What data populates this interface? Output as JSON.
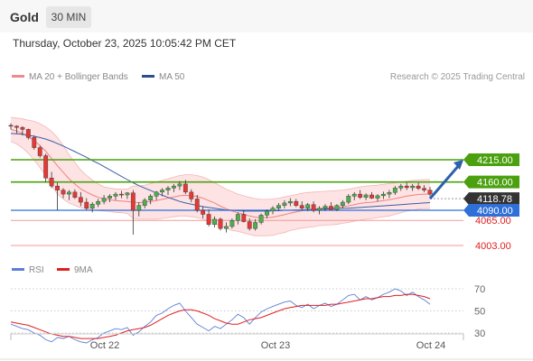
{
  "header": {
    "symbol": "Gold",
    "timeframe": "30 MIN"
  },
  "timestamp": "Thursday, October 23, 2025 10:05:42 PM CET",
  "legend": {
    "items": [
      {
        "label": "MA 20 + Bollinger Bands",
        "color": "#f08a8a"
      },
      {
        "label": "MA 50",
        "color": "#2b4f8e"
      }
    ],
    "credit": "Research © 2025 Trading Central"
  },
  "rsi_legend": {
    "items": [
      {
        "label": "RSI",
        "color": "#5b7fd6"
      },
      {
        "label": "9MA",
        "color": "#e02020"
      }
    ]
  },
  "colors": {
    "up": "#4caf50",
    "down": "#e53935",
    "resistance": "#4aa00e",
    "support": "#f29a9a",
    "ma20": "#f28080",
    "ma50": "#3b5ea8",
    "band_fill": "#fde3e3",
    "current": "#333333",
    "pivot": "#2f6fd8",
    "arrow": "#2d5fae"
  },
  "chart_data": [
    {
      "type": "candlestick",
      "title": "Gold 30 MIN",
      "x_tick_labels": [
        "Oct 22",
        "Oct 23",
        "Oct 24"
      ],
      "price_levels": [
        {
          "price": 4215.0,
          "label": "4215.00",
          "kind": "resistance"
        },
        {
          "price": 4160.0,
          "label": "4160.00",
          "kind": "resistance"
        },
        {
          "price": 4118.78,
          "label": "4118.78",
          "kind": "current"
        },
        {
          "price": 4090.0,
          "label": "4090.00",
          "kind": "pivot"
        },
        {
          "price": 4065.0,
          "label": "4065.00",
          "kind": "support"
        },
        {
          "price": 4003.0,
          "label": "4003.00",
          "kind": "support"
        }
      ],
      "ylim": [
        3960,
        4320
      ],
      "ohlc": [
        [
          4300,
          4305,
          4290,
          4298
        ],
        [
          4298,
          4300,
          4280,
          4295
        ],
        [
          4295,
          4298,
          4275,
          4290
        ],
        [
          4290,
          4292,
          4265,
          4270
        ],
        [
          4270,
          4275,
          4240,
          4245
        ],
        [
          4245,
          4250,
          4220,
          4225
        ],
        [
          4225,
          4230,
          4160,
          4170
        ],
        [
          4170,
          4185,
          4145,
          4150
        ],
        [
          4150,
          4158,
          4090,
          4140
        ],
        [
          4140,
          4145,
          4120,
          4130
        ],
        [
          4130,
          4140,
          4115,
          4135
        ],
        [
          4135,
          4142,
          4118,
          4122
        ],
        [
          4122,
          4135,
          4100,
          4110
        ],
        [
          4110,
          4120,
          4090,
          4095
        ],
        [
          4095,
          4110,
          4085,
          4105
        ],
        [
          4105,
          4118,
          4098,
          4112
        ],
        [
          4112,
          4128,
          4105,
          4120
        ],
        [
          4120,
          4130,
          4110,
          4125
        ],
        [
          4125,
          4135,
          4115,
          4130
        ],
        [
          4130,
          4138,
          4120,
          4128
        ],
        [
          4128,
          4135,
          4118,
          4133
        ],
        [
          4133,
          4140,
          4030,
          4090
        ],
        [
          4090,
          4110,
          4075,
          4102
        ],
        [
          4102,
          4120,
          4095,
          4115
        ],
        [
          4115,
          4130,
          4105,
          4125
        ],
        [
          4125,
          4138,
          4115,
          4135
        ],
        [
          4135,
          4145,
          4125,
          4140
        ],
        [
          4140,
          4150,
          4128,
          4145
        ],
        [
          4145,
          4155,
          4135,
          4150
        ],
        [
          4150,
          4162,
          4140,
          4155
        ],
        [
          4155,
          4165,
          4130,
          4135
        ],
        [
          4135,
          4142,
          4110,
          4118
        ],
        [
          4118,
          4128,
          4085,
          4090
        ],
        [
          4090,
          4100,
          4070,
          4080
        ],
        [
          4080,
          4092,
          4050,
          4055
        ],
        [
          4055,
          4075,
          4048,
          4068
        ],
        [
          4068,
          4072,
          4040,
          4045
        ],
        [
          4045,
          4060,
          4035,
          4050
        ],
        [
          4050,
          4070,
          4045,
          4065
        ],
        [
          4065,
          4085,
          4055,
          4080
        ],
        [
          4080,
          4090,
          4060,
          4062
        ],
        [
          4062,
          4070,
          4040,
          4045
        ],
        [
          4045,
          4068,
          4040,
          4060
        ],
        [
          4060,
          4082,
          4055,
          4078
        ],
        [
          4078,
          4092,
          4070,
          4088
        ],
        [
          4088,
          4100,
          4080,
          4095
        ],
        [
          4095,
          4108,
          4088,
          4102
        ],
        [
          4102,
          4115,
          4095,
          4108
        ],
        [
          4108,
          4120,
          4100,
          4112
        ],
        [
          4112,
          4118,
          4098,
          4102
        ],
        [
          4102,
          4112,
          4090,
          4095
        ],
        [
          4095,
          4108,
          4088,
          4104
        ],
        [
          4104,
          4112,
          4085,
          4090
        ],
        [
          4090,
          4100,
          4080,
          4095
        ],
        [
          4095,
          4105,
          4088,
          4100
        ],
        [
          4100,
          4110,
          4090,
          4092
        ],
        [
          4092,
          4105,
          4088,
          4102
        ],
        [
          4102,
          4115,
          4095,
          4110
        ],
        [
          4110,
          4130,
          4105,
          4125
        ],
        [
          4125,
          4135,
          4115,
          4130
        ],
        [
          4130,
          4140,
          4118,
          4122
        ],
        [
          4122,
          4132,
          4115,
          4128
        ],
        [
          4128,
          4135,
          4118,
          4120
        ],
        [
          4120,
          4130,
          4112,
          4126
        ],
        [
          4126,
          4136,
          4118,
          4130
        ],
        [
          4130,
          4140,
          4120,
          4134
        ],
        [
          4134,
          4150,
          4128,
          4145
        ],
        [
          4145,
          4155,
          4138,
          4150
        ],
        [
          4150,
          4158,
          4140,
          4146
        ],
        [
          4146,
          4155,
          4138,
          4150
        ],
        [
          4150,
          4158,
          4140,
          4144
        ],
        [
          4144,
          4152,
          4135,
          4140
        ],
        [
          4140,
          4148,
          4125,
          4130
        ]
      ],
      "ma20": [
        4290,
        4286,
        4280,
        4272,
        4262,
        4250,
        4236,
        4218,
        4200,
        4184,
        4168,
        4155,
        4143,
        4135,
        4128,
        4122,
        4118,
        4116,
        4114,
        4113,
        4112,
        4110,
        4109,
        4110,
        4112,
        4114,
        4117,
        4120,
        4123,
        4126,
        4127,
        4126,
        4124,
        4120,
        4114,
        4108,
        4100,
        4094,
        4088,
        4084,
        4080,
        4076,
        4073,
        4072,
        4072,
        4073,
        4076,
        4079,
        4083,
        4086,
        4089,
        4091,
        4092,
        4094,
        4095,
        4096,
        4097,
        4099,
        4101,
        4104,
        4107,
        4109,
        4110,
        4112,
        4114,
        4116,
        4119,
        4122,
        4125,
        4127,
        4129,
        4130,
        4130
      ],
      "bb_upper": [
        4320,
        4318,
        4316,
        4313,
        4310,
        4304,
        4296,
        4285,
        4270,
        4250,
        4228,
        4208,
        4190,
        4176,
        4165,
        4155,
        4148,
        4145,
        4143,
        4142,
        4142,
        4150,
        4150,
        4152,
        4156,
        4160,
        4164,
        4168,
        4172,
        4176,
        4178,
        4178,
        4176,
        4172,
        4166,
        4158,
        4150,
        4142,
        4136,
        4130,
        4126,
        4122,
        4119,
        4117,
        4117,
        4118,
        4120,
        4123,
        4126,
        4129,
        4132,
        4134,
        4135,
        4136,
        4137,
        4138,
        4139,
        4140,
        4142,
        4145,
        4148,
        4150,
        4151,
        4152,
        4154,
        4156,
        4158,
        4160,
        4162,
        4164,
        4165,
        4166,
        4166
      ],
      "bb_lower": [
        4260,
        4254,
        4244,
        4231,
        4214,
        4196,
        4176,
        4151,
        4130,
        4118,
        4108,
        4102,
        4096,
        4094,
        4091,
        4089,
        4088,
        4087,
        4085,
        4084,
        4082,
        4070,
        4068,
        4068,
        4068,
        4068,
        4070,
        4072,
        4074,
        4076,
        4076,
        4074,
        4072,
        4068,
        4062,
        4058,
        4050,
        4046,
        4040,
        4038,
        4034,
        4030,
        4027,
        4027,
        4027,
        4028,
        4032,
        4035,
        4040,
        4043,
        4046,
        4048,
        4049,
        4052,
        4053,
        4054,
        4055,
        4058,
        4060,
        4063,
        4066,
        4068,
        4069,
        4072,
        4074,
        4076,
        4080,
        4084,
        4088,
        4090,
        4093,
        4094,
        4094
      ],
      "ma50": [
        4280,
        4279,
        4278,
        4276,
        4273,
        4270,
        4266,
        4261,
        4255,
        4249,
        4242,
        4235,
        4228,
        4221,
        4213,
        4206,
        4198,
        4190,
        4182,
        4174,
        4166,
        4158,
        4151,
        4145,
        4139,
        4133,
        4127,
        4122,
        4117,
        4112,
        4108,
        4105,
        4102,
        4099,
        4097,
        4095,
        4093,
        4091,
        4090,
        4089,
        4088,
        4088,
        4088,
        4088,
        4088,
        4089,
        4089,
        4090,
        4090,
        4091,
        4091,
        4092,
        4092,
        4093,
        4093,
        4094,
        4094,
        4095,
        4095,
        4096,
        4097,
        4098,
        4099,
        4100,
        4101,
        4102,
        4103,
        4104,
        4105,
        4106,
        4107,
        4108,
        4109
      ],
      "projection": {
        "from_price": 4118.78,
        "to_price": 4215.0
      }
    },
    {
      "type": "line",
      "title": "RSI",
      "y_tick_labels": [
        "70",
        "50",
        "30"
      ],
      "ylim": [
        10,
        80
      ],
      "series": [
        {
          "name": "RSI",
          "values": [
            38,
            36,
            34,
            33,
            30,
            28,
            24,
            22,
            26,
            25,
            27,
            24,
            22,
            21,
            24,
            26,
            30,
            32,
            34,
            33,
            35,
            28,
            31,
            36,
            40,
            46,
            48,
            52,
            55,
            57,
            50,
            44,
            38,
            35,
            32,
            36,
            34,
            38,
            42,
            47,
            44,
            38,
            44,
            49,
            52,
            54,
            56,
            58,
            59,
            55,
            53,
            56,
            52,
            55,
            57,
            54,
            56,
            60,
            64,
            65,
            60,
            63,
            60,
            62,
            65,
            67,
            70,
            68,
            64,
            67,
            63,
            60,
            56
          ]
        },
        {
          "name": "9MA",
          "values": [
            40,
            39,
            38,
            37,
            35,
            33,
            31,
            29,
            28,
            27,
            27,
            26,
            25,
            25,
            25,
            25,
            26,
            27,
            28,
            30,
            32,
            33,
            34,
            35,
            37,
            40,
            43,
            46,
            48,
            50,
            51,
            51,
            50,
            48,
            46,
            43,
            41,
            39,
            38,
            38,
            40,
            42,
            43,
            44,
            46,
            48,
            50,
            52,
            53,
            54,
            55,
            55,
            55,
            55,
            55,
            56,
            56,
            57,
            58,
            59,
            60,
            61,
            61,
            62,
            63,
            63,
            64,
            64,
            65,
            65,
            64,
            63,
            61
          ]
        }
      ]
    }
  ]
}
